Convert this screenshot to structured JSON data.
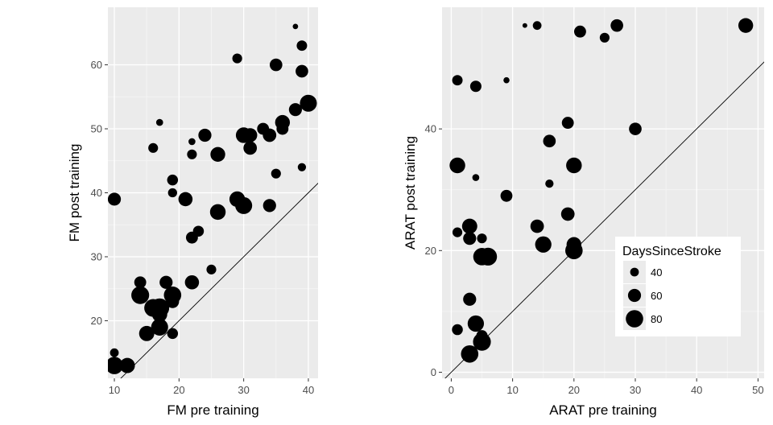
{
  "chart_data": [
    {
      "type": "scatter",
      "title": "",
      "xlabel": "FM pre training",
      "ylabel": "FM post training",
      "xlim": [
        9,
        41.5
      ],
      "ylim": [
        11,
        69
      ],
      "x_ticks": [
        10,
        20,
        30,
        40
      ],
      "y_ticks": [
        20,
        30,
        40,
        50,
        60
      ],
      "identity_line": true,
      "grid": true,
      "panel_background": "#ebebeb",
      "point_color": "#000000",
      "points": [
        {
          "x": 10,
          "y": 13,
          "size": 80
        },
        {
          "x": 10,
          "y": 15,
          "size": 40
        },
        {
          "x": 10,
          "y": 39,
          "size": 60
        },
        {
          "x": 12,
          "y": 13,
          "size": 70
        },
        {
          "x": 14,
          "y": 26,
          "size": 55
        },
        {
          "x": 14,
          "y": 24,
          "size": 82
        },
        {
          "x": 15,
          "y": 18,
          "size": 70
        },
        {
          "x": 16,
          "y": 22,
          "size": 82
        },
        {
          "x": 16,
          "y": 47,
          "size": 45
        },
        {
          "x": 17,
          "y": 22,
          "size": 88
        },
        {
          "x": 17,
          "y": 19,
          "size": 78
        },
        {
          "x": 17,
          "y": 21,
          "size": 70
        },
        {
          "x": 17,
          "y": 51,
          "size": 32
        },
        {
          "x": 18,
          "y": 26,
          "size": 60
        },
        {
          "x": 19,
          "y": 24,
          "size": 80
        },
        {
          "x": 19,
          "y": 23,
          "size": 60
        },
        {
          "x": 19,
          "y": 18,
          "size": 50
        },
        {
          "x": 19,
          "y": 42,
          "size": 50
        },
        {
          "x": 19,
          "y": 40,
          "size": 42
        },
        {
          "x": 21,
          "y": 39,
          "size": 65
        },
        {
          "x": 22,
          "y": 26,
          "size": 65
        },
        {
          "x": 22,
          "y": 33,
          "size": 55
        },
        {
          "x": 22,
          "y": 46,
          "size": 45
        },
        {
          "x": 22,
          "y": 48,
          "size": 32
        },
        {
          "x": 23,
          "y": 34,
          "size": 50
        },
        {
          "x": 24,
          "y": 49,
          "size": 60
        },
        {
          "x": 25,
          "y": 28,
          "size": 45
        },
        {
          "x": 26,
          "y": 37,
          "size": 72
        },
        {
          "x": 26,
          "y": 46,
          "size": 68
        },
        {
          "x": 29,
          "y": 61,
          "size": 45
        },
        {
          "x": 29,
          "y": 39,
          "size": 72
        },
        {
          "x": 30,
          "y": 38,
          "size": 78
        },
        {
          "x": 30,
          "y": 49,
          "size": 72
        },
        {
          "x": 31,
          "y": 49,
          "size": 65
        },
        {
          "x": 31,
          "y": 47,
          "size": 62
        },
        {
          "x": 33,
          "y": 50,
          "size": 55
        },
        {
          "x": 34,
          "y": 49,
          "size": 62
        },
        {
          "x": 34,
          "y": 38,
          "size": 60
        },
        {
          "x": 35,
          "y": 60,
          "size": 58
        },
        {
          "x": 35,
          "y": 43,
          "size": 45
        },
        {
          "x": 36,
          "y": 51,
          "size": 68
        },
        {
          "x": 36,
          "y": 50,
          "size": 55
        },
        {
          "x": 38,
          "y": 66,
          "size": 25
        },
        {
          "x": 38,
          "y": 53,
          "size": 60
        },
        {
          "x": 39,
          "y": 63,
          "size": 48
        },
        {
          "x": 39,
          "y": 59,
          "size": 58
        },
        {
          "x": 39,
          "y": 44,
          "size": 38
        },
        {
          "x": 40,
          "y": 54,
          "size": 78
        }
      ]
    },
    {
      "type": "scatter",
      "title": "",
      "xlabel": "ARAT pre training",
      "ylabel": "ARAT post training",
      "xlim": [
        -1.5,
        51
      ],
      "ylim": [
        -1,
        60
      ],
      "x_ticks": [
        0,
        10,
        20,
        30,
        40,
        50
      ],
      "y_ticks": [
        0,
        20,
        40
      ],
      "identity_line": true,
      "grid": true,
      "panel_background": "#ebebeb",
      "point_color": "#000000",
      "legend": {
        "title": "DaysSinceStroke",
        "position": "bottom-right",
        "entries": [
          {
            "label": "40",
            "size": 40
          },
          {
            "label": "60",
            "size": 60
          },
          {
            "label": "80",
            "size": 80
          }
        ]
      },
      "points": [
        {
          "x": 1,
          "y": 7,
          "size": 50
        },
        {
          "x": 1,
          "y": 23,
          "size": 45
        },
        {
          "x": 1,
          "y": 34,
          "size": 72
        },
        {
          "x": 1,
          "y": 48,
          "size": 48
        },
        {
          "x": 3,
          "y": 3,
          "size": 80
        },
        {
          "x": 3,
          "y": 12,
          "size": 60
        },
        {
          "x": 3,
          "y": 22,
          "size": 60
        },
        {
          "x": 3,
          "y": 24,
          "size": 70
        },
        {
          "x": 4,
          "y": 8,
          "size": 75
        },
        {
          "x": 4,
          "y": 32,
          "size": 32
        },
        {
          "x": 4,
          "y": 47,
          "size": 52
        },
        {
          "x": 5,
          "y": 5,
          "size": 82
        },
        {
          "x": 5,
          "y": 6,
          "size": 52
        },
        {
          "x": 5,
          "y": 22,
          "size": 45
        },
        {
          "x": 5,
          "y": 19,
          "size": 80
        },
        {
          "x": 6,
          "y": 19,
          "size": 82
        },
        {
          "x": 9,
          "y": 29,
          "size": 55
        },
        {
          "x": 9,
          "y": 48,
          "size": 28
        },
        {
          "x": 12,
          "y": 57,
          "size": 22
        },
        {
          "x": 14,
          "y": 57,
          "size": 40
        },
        {
          "x": 14,
          "y": 24,
          "size": 62
        },
        {
          "x": 15,
          "y": 21,
          "size": 75
        },
        {
          "x": 16,
          "y": 38,
          "size": 58
        },
        {
          "x": 16,
          "y": 31,
          "size": 38
        },
        {
          "x": 19,
          "y": 41,
          "size": 55
        },
        {
          "x": 19,
          "y": 26,
          "size": 62
        },
        {
          "x": 20,
          "y": 34,
          "size": 72
        },
        {
          "x": 20,
          "y": 21,
          "size": 68
        },
        {
          "x": 20,
          "y": 20,
          "size": 80
        },
        {
          "x": 21,
          "y": 56,
          "size": 55
        },
        {
          "x": 25,
          "y": 55,
          "size": 45
        },
        {
          "x": 27,
          "y": 57,
          "size": 58
        },
        {
          "x": 30,
          "y": 40,
          "size": 58
        },
        {
          "x": 48,
          "y": 57,
          "size": 68
        }
      ]
    }
  ]
}
